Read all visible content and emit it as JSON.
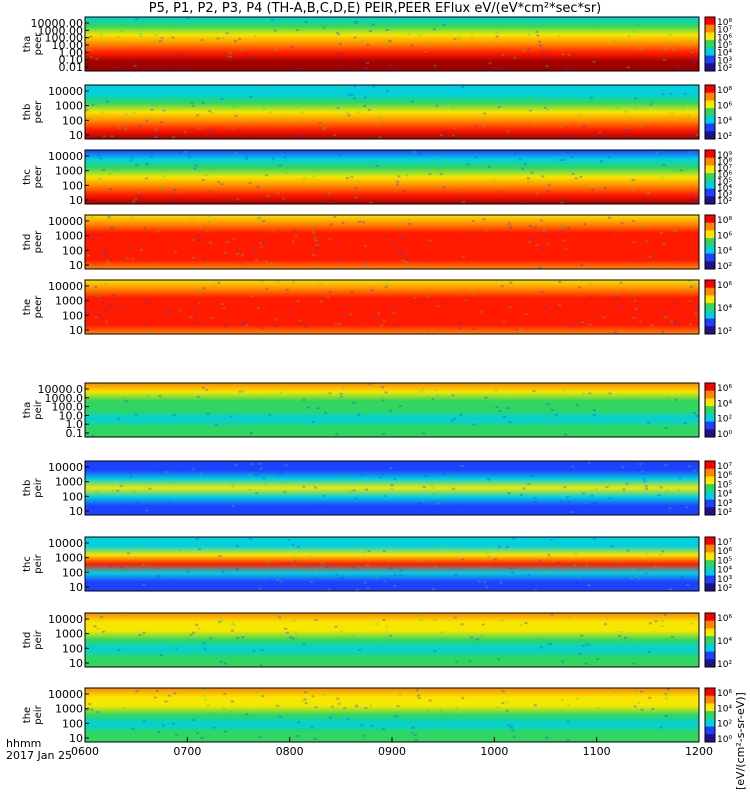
{
  "title": "P5, P1, P2, P3, P4 (TH-A,B,C,D,E) PEIR,PEER EFlux eV/(eV*cm²*sec*sr)",
  "time_axis": {
    "label_top": "hhmm",
    "label_bottom": "2017 Jan 25",
    "ticks": [
      "0600",
      "0700",
      "0800",
      "0900",
      "1000",
      "1100",
      "1200"
    ]
  },
  "colorbar_label": "[eV/(cm²-s-sr-eV)]",
  "colors": {
    "dark_red": "#a00000",
    "red": "#ff1a00",
    "orange": "#ff8800",
    "yellow": "#f6e600",
    "green": "#30d660",
    "cyan": "#00d0e0",
    "blue": "#2040ff",
    "dark_blue": "#20108a"
  },
  "chart_data": [
    {
      "type": "heatmap",
      "probe": "tha",
      "species": "peer",
      "ylabel": [
        "tha",
        "peer"
      ],
      "ylog": true,
      "yticks": [
        "10000.00",
        "1000.00",
        "100.00",
        "10.00",
        "1.00",
        "0.10",
        "0.01"
      ],
      "cbar_ticks": [
        "10⁸",
        "10⁷",
        "10⁶",
        "10⁵",
        "10⁴",
        "10³",
        "10²"
      ],
      "levels_low_to_high_energy": [
        "dark_red",
        "dark_red",
        "red",
        "orange",
        "yellow",
        "green",
        "cyan"
      ]
    },
    {
      "type": "heatmap",
      "probe": "thb",
      "species": "peer",
      "ylabel": [
        "thb",
        "peer"
      ],
      "ylog": true,
      "yticks": [
        "10000",
        "1000",
        "100",
        "10"
      ],
      "cbar_ticks": [
        "10⁸",
        "10⁶",
        "10⁴",
        "10²"
      ],
      "levels_low_to_high_energy": [
        "dark_red",
        "red",
        "orange",
        "yellow",
        "green",
        "cyan",
        "cyan"
      ]
    },
    {
      "type": "heatmap",
      "probe": "thc",
      "species": "peer",
      "ylabel": [
        "thc",
        "peer"
      ],
      "ylog": true,
      "yticks": [
        "10000",
        "1000",
        "100",
        "10"
      ],
      "cbar_ticks": [
        "10⁹",
        "10⁸",
        "10⁷",
        "10⁶",
        "10⁵",
        "10⁴",
        "10³",
        "10²"
      ],
      "levels_low_to_high_energy": [
        "dark_red",
        "red",
        "orange",
        "yellow",
        "green",
        "cyan",
        "blue"
      ]
    },
    {
      "type": "heatmap",
      "probe": "thd",
      "species": "peer",
      "ylabel": [
        "thd",
        "peer"
      ],
      "ylog": true,
      "yticks": [
        "10000",
        "1000",
        "100",
        "10"
      ],
      "cbar_ticks": [
        "10⁸",
        "10⁶",
        "10⁴",
        "10²"
      ],
      "levels_low_to_high_energy": [
        "orange",
        "red",
        "red",
        "red",
        "red",
        "orange",
        "yellow"
      ]
    },
    {
      "type": "heatmap",
      "probe": "the",
      "species": "peer",
      "ylabel": [
        "the",
        "peer"
      ],
      "ylog": true,
      "yticks": [
        "10000",
        "1000",
        "100",
        "10"
      ],
      "cbar_ticks": [
        "10⁶",
        "10⁴",
        "10²"
      ],
      "levels_low_to_high_energy": [
        "orange",
        "red",
        "red",
        "red",
        "red",
        "orange",
        "yellow"
      ]
    },
    {
      "type": "heatmap",
      "probe": "tha",
      "species": "peir",
      "ylabel": [
        "tha",
        "peir"
      ],
      "ylog": true,
      "yticks": [
        "10000.0",
        "1000.0",
        "100.0",
        "10.0",
        "1.0",
        "0.1"
      ],
      "cbar_ticks": [
        "10⁶",
        "10⁴",
        "10²",
        "10⁰"
      ],
      "levels_low_to_high_energy": [
        "green",
        "green",
        "cyan",
        "green",
        "green",
        "yellow",
        "orange"
      ]
    },
    {
      "type": "heatmap",
      "probe": "thb",
      "species": "peir",
      "ylabel": [
        "thb",
        "peir"
      ],
      "ylog": true,
      "yticks": [
        "10000",
        "1000",
        "100",
        "10"
      ],
      "cbar_ticks": [
        "10⁷",
        "10⁶",
        "10⁵",
        "10⁴",
        "10³",
        "10²"
      ],
      "levels_low_to_high_energy": [
        "blue",
        "blue",
        "cyan",
        "yellow",
        "cyan",
        "blue",
        "blue"
      ]
    },
    {
      "type": "heatmap",
      "probe": "thc",
      "species": "peir",
      "ylabel": [
        "thc",
        "peir"
      ],
      "ylog": true,
      "yticks": [
        "10000",
        "1000",
        "100",
        "10"
      ],
      "cbar_ticks": [
        "10⁷",
        "10⁶",
        "10⁵",
        "10⁴",
        "10³",
        "10²"
      ],
      "levels_low_to_high_energy": [
        "blue",
        "blue",
        "cyan",
        "red",
        "yellow",
        "cyan",
        "cyan"
      ]
    },
    {
      "type": "heatmap",
      "probe": "thd",
      "species": "peir",
      "ylabel": [
        "thd",
        "peir"
      ],
      "ylog": true,
      "yticks": [
        "10000",
        "1000",
        "100",
        "10"
      ],
      "cbar_ticks": [
        "10⁶",
        "10⁴",
        "10²"
      ],
      "levels_low_to_high_energy": [
        "green",
        "green",
        "cyan",
        "green",
        "yellow",
        "yellow",
        "orange"
      ]
    },
    {
      "type": "heatmap",
      "probe": "the",
      "species": "peir",
      "ylabel": [
        "the",
        "peir"
      ],
      "ylog": true,
      "yticks": [
        "10000",
        "1000",
        "100",
        "10"
      ],
      "cbar_ticks": [
        "10⁶",
        "10⁴",
        "10²",
        "10⁰"
      ],
      "levels_low_to_high_energy": [
        "green",
        "green",
        "cyan",
        "green",
        "yellow",
        "yellow",
        "orange"
      ]
    }
  ]
}
